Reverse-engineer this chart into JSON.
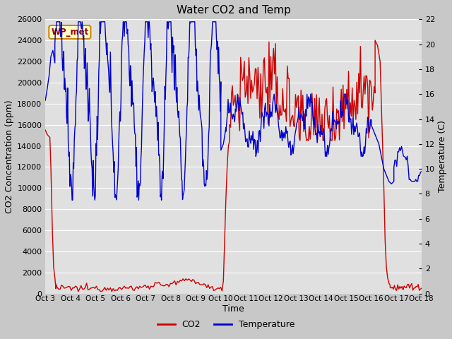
{
  "title": "Water CO2 and Temp",
  "xlabel": "Time",
  "ylabel_left": "CO2 Concentration (ppm)",
  "ylabel_right": "Temperature (C)",
  "co2_ylim": [
    0,
    26000
  ],
  "temp_ylim": [
    0,
    22
  ],
  "co2_yticks": [
    0,
    2000,
    4000,
    6000,
    8000,
    10000,
    12000,
    14000,
    16000,
    18000,
    20000,
    22000,
    24000,
    26000
  ],
  "temp_yticks": [
    0,
    2,
    4,
    6,
    8,
    10,
    12,
    14,
    16,
    18,
    20,
    22
  ],
  "x_tick_labels": [
    "Oct 3",
    "Oct 4",
    "Oct 5",
    "Oct 6",
    "Oct 7",
    "Oct 8",
    "Oct 9",
    "Oct 10",
    "Oct 11",
    "Oct 12",
    "Oct 13",
    "Oct 14",
    "Oct 15",
    "Oct 16",
    "Oct 17",
    "Oct 18"
  ],
  "co2_color": "#cc0000",
  "temp_color": "#0000cc",
  "fig_bg_color": "#c8c8c8",
  "plot_bg_color": "#e0e0e0",
  "grid_color": "#ffffff",
  "label_box_facecolor": "#ffffcc",
  "label_box_edgecolor": "#cc8800",
  "label_text": "WP_met",
  "label_text_color": "#990000",
  "legend_co2": "CO2",
  "legend_temp": "Temperature",
  "title_fontsize": 11,
  "axis_label_fontsize": 9,
  "tick_fontsize": 8,
  "xtick_fontsize": 7.5
}
